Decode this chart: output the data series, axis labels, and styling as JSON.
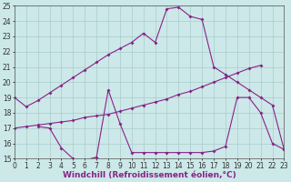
{
  "line1_x": [
    0,
    1,
    2,
    3,
    4,
    5,
    6,
    7,
    8,
    9,
    10,
    11,
    12,
    13,
    14,
    15,
    16,
    17,
    18,
    19,
    20,
    21,
    22,
    23
  ],
  "line1_y": [
    19.0,
    18.4,
    18.8,
    19.3,
    19.8,
    20.3,
    20.8,
    21.3,
    21.8,
    22.2,
    22.6,
    23.2,
    22.6,
    24.8,
    24.9,
    24.3,
    24.1,
    21.0,
    20.5,
    20.0,
    19.5,
    19.0,
    18.5,
    15.6
  ],
  "line2_x": [
    0,
    1,
    2,
    3,
    4,
    5,
    6,
    7,
    8,
    9,
    10,
    11,
    12,
    13,
    14,
    15,
    16,
    17,
    18,
    19,
    20,
    21
  ],
  "line2_y": [
    17.0,
    17.1,
    17.2,
    17.3,
    17.4,
    17.5,
    17.7,
    17.8,
    17.9,
    18.1,
    18.3,
    18.5,
    18.7,
    18.9,
    19.2,
    19.4,
    19.7,
    20.0,
    20.3,
    20.6,
    20.9,
    21.1
  ],
  "line3_x": [
    2,
    3,
    4,
    5,
    6,
    7,
    8,
    9,
    10,
    11,
    12,
    13,
    14,
    15,
    16,
    17,
    18,
    19,
    20,
    21,
    22,
    23
  ],
  "line3_y": [
    17.1,
    17.0,
    15.7,
    15.0,
    14.9,
    15.1,
    19.5,
    17.3,
    15.4,
    15.4,
    15.4,
    15.4,
    15.4,
    15.4,
    15.4,
    15.5,
    15.8,
    19.0,
    19.0,
    18.0,
    16.0,
    15.6
  ],
  "color": "#882288",
  "bg_color": "#cce8e8",
  "grid_color": "#aacccc",
  "xlabel": "Windchill (Refroidissement éolien,°C)",
  "ylim": [
    15,
    25
  ],
  "xlim": [
    0,
    23
  ],
  "yticks": [
    15,
    16,
    17,
    18,
    19,
    20,
    21,
    22,
    23,
    24,
    25
  ],
  "xticks": [
    0,
    1,
    2,
    3,
    4,
    5,
    6,
    7,
    8,
    9,
    10,
    11,
    12,
    13,
    14,
    15,
    16,
    17,
    18,
    19,
    20,
    21,
    22,
    23
  ],
  "marker": "D",
  "markersize": 2.0,
  "linewidth": 0.8,
  "xlabel_fontsize": 6.5,
  "tick_fontsize": 5.5
}
